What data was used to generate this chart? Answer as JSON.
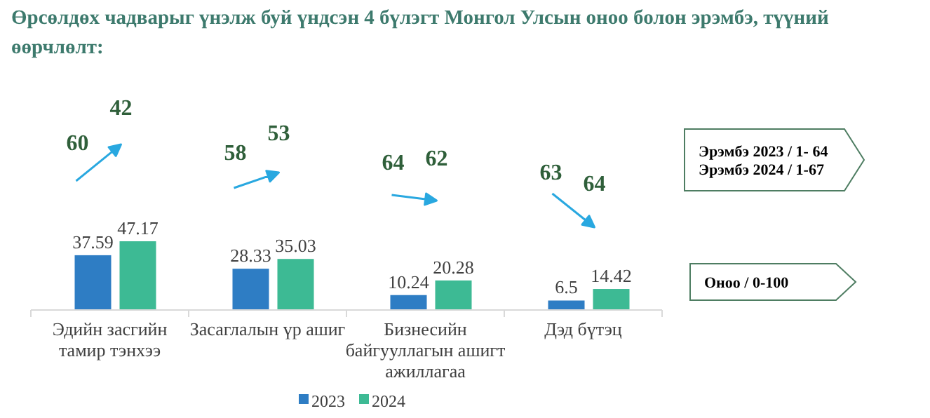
{
  "chart_data": {
    "type": "bar",
    "title": "Өрсөлдөх чадварыг үнэлж буй үндсэн 4 бүлэгт Монгол Улсын оноо болон эрэмбэ, түүний өөрчлөлт:",
    "categories": [
      "Эдийн засгийн тамир тэнхээ",
      "Засаглалын үр ашиг",
      "Бизнесийн байгууллагын ашигт ажиллагаа",
      "Дэд бүтэц"
    ],
    "series": [
      {
        "name": "2023",
        "color": "#2e7dc4",
        "values": [
          37.59,
          28.33,
          10.24,
          6.5
        ]
      },
      {
        "name": "2024",
        "color": "#3dba94",
        "values": [
          47.17,
          35.03,
          20.28,
          14.42
        ]
      }
    ],
    "data_labels": true,
    "legend": "bottom",
    "annotations": [
      "60",
      "42",
      "58",
      "53",
      "64",
      "62",
      "63",
      "64",
      "Эрэмбэ 2023 / 1- 64\nЭрэмбэ 2024 / 1-67",
      "Оноо / 0-100"
    ]
  }
}
